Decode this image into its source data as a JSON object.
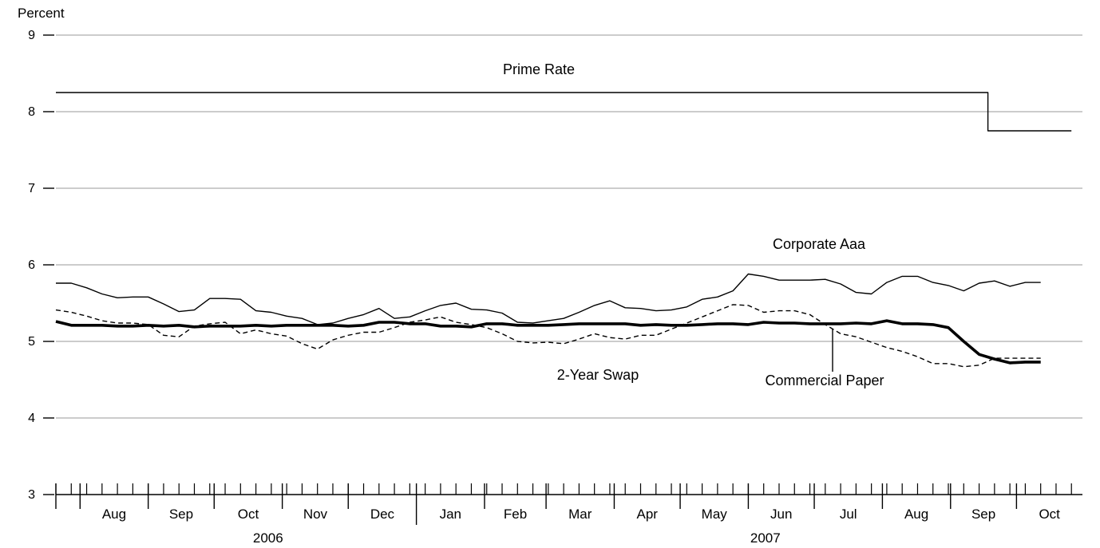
{
  "chart_data": {
    "type": "line",
    "ylabel": "Percent",
    "ylim": [
      3,
      9
    ],
    "yticks": [
      "3",
      "4",
      "5",
      "6",
      "7",
      "8",
      "9"
    ],
    "grid": "horizontal",
    "months": [
      "Aug",
      "Sep",
      "Oct",
      "Nov",
      "Dec",
      "Jan",
      "Feb",
      "Mar",
      "Apr",
      "May",
      "Jun",
      "Jul",
      "Aug",
      "Sep",
      "Oct"
    ],
    "years": [
      "2006",
      "2007"
    ],
    "x_start": "2006-07-21",
    "x_end": "2007-10-31",
    "series": [
      {
        "name": "Prime Rate",
        "style": "thin-solid",
        "x": [
          "2006-07-21",
          "2007-09-18",
          "2007-09-18",
          "2007-10-26"
        ],
        "values": [
          8.25,
          8.25,
          7.75,
          7.75
        ]
      },
      {
        "name": "Corporate Aaa",
        "style": "thin-solid",
        "x": [
          "2006-07-21",
          "2006-07-28",
          "2006-08-04",
          "2006-08-11",
          "2006-08-18",
          "2006-08-25",
          "2006-09-01",
          "2006-09-08",
          "2006-09-15",
          "2006-09-22",
          "2006-09-29",
          "2006-10-06",
          "2006-10-13",
          "2006-10-20",
          "2006-10-27",
          "2006-11-03",
          "2006-11-10",
          "2006-11-17",
          "2006-11-24",
          "2006-12-01",
          "2006-12-08",
          "2006-12-15",
          "2006-12-22",
          "2006-12-29",
          "2007-01-05",
          "2007-01-12",
          "2007-01-19",
          "2007-01-26",
          "2007-02-02",
          "2007-02-09",
          "2007-02-16",
          "2007-02-23",
          "2007-03-02",
          "2007-03-09",
          "2007-03-16",
          "2007-03-23",
          "2007-03-30",
          "2007-04-06",
          "2007-04-13",
          "2007-04-20",
          "2007-04-27",
          "2007-05-04",
          "2007-05-11",
          "2007-05-18",
          "2007-05-25",
          "2007-06-01",
          "2007-06-08",
          "2007-06-15",
          "2007-06-22",
          "2007-06-29",
          "2007-07-06",
          "2007-07-13",
          "2007-07-20",
          "2007-07-27",
          "2007-08-03",
          "2007-08-10",
          "2007-08-17",
          "2007-08-24",
          "2007-08-31",
          "2007-09-07",
          "2007-09-14",
          "2007-09-21",
          "2007-09-28",
          "2007-10-05",
          "2007-10-12"
        ],
        "values": [
          5.76,
          5.76,
          5.7,
          5.62,
          5.57,
          5.58,
          5.58,
          5.49,
          5.39,
          5.41,
          5.56,
          5.56,
          5.55,
          5.4,
          5.38,
          5.33,
          5.3,
          5.22,
          5.24,
          5.3,
          5.35,
          5.43,
          5.3,
          5.32,
          5.4,
          5.47,
          5.5,
          5.42,
          5.41,
          5.37,
          5.25,
          5.24,
          5.27,
          5.3,
          5.38,
          5.47,
          5.53,
          5.44,
          5.43,
          5.4,
          5.41,
          5.45,
          5.55,
          5.58,
          5.66,
          5.88,
          5.85,
          5.8,
          5.8,
          5.8,
          5.81,
          5.75,
          5.64,
          5.62,
          5.77,
          5.85,
          5.85,
          5.77,
          5.73,
          5.66,
          5.76,
          5.79,
          5.72,
          5.77,
          5.77
        ]
      },
      {
        "name": "2-Year Swap",
        "style": "dashed",
        "x": [
          "2006-07-21",
          "2006-07-28",
          "2006-08-04",
          "2006-08-11",
          "2006-08-18",
          "2006-08-25",
          "2006-09-01",
          "2006-09-08",
          "2006-09-15",
          "2006-09-22",
          "2006-09-29",
          "2006-10-06",
          "2006-10-13",
          "2006-10-20",
          "2006-10-27",
          "2006-11-03",
          "2006-11-10",
          "2006-11-17",
          "2006-11-24",
          "2006-12-01",
          "2006-12-08",
          "2006-12-15",
          "2006-12-22",
          "2006-12-29",
          "2007-01-05",
          "2007-01-12",
          "2007-01-19",
          "2007-01-26",
          "2007-02-02",
          "2007-02-09",
          "2007-02-16",
          "2007-02-23",
          "2007-03-02",
          "2007-03-09",
          "2007-03-16",
          "2007-03-23",
          "2007-03-30",
          "2007-04-06",
          "2007-04-13",
          "2007-04-20",
          "2007-04-27",
          "2007-05-04",
          "2007-05-11",
          "2007-05-18",
          "2007-05-25",
          "2007-06-01",
          "2007-06-08",
          "2007-06-15",
          "2007-06-22",
          "2007-06-29",
          "2007-07-06",
          "2007-07-13",
          "2007-07-20",
          "2007-07-27",
          "2007-08-03",
          "2007-08-10",
          "2007-08-17",
          "2007-08-24",
          "2007-08-31",
          "2007-09-07",
          "2007-09-14",
          "2007-09-21",
          "2007-09-28",
          "2007-10-05",
          "2007-10-12"
        ],
        "values": [
          5.41,
          5.38,
          5.33,
          5.27,
          5.24,
          5.24,
          5.22,
          5.08,
          5.06,
          5.2,
          5.23,
          5.25,
          5.1,
          5.15,
          5.1,
          5.07,
          4.97,
          4.9,
          5.02,
          5.08,
          5.12,
          5.12,
          5.18,
          5.25,
          5.28,
          5.32,
          5.25,
          5.22,
          5.18,
          5.1,
          5.0,
          4.98,
          4.99,
          4.97,
          5.03,
          5.1,
          5.05,
          5.03,
          5.08,
          5.08,
          5.16,
          5.24,
          5.32,
          5.4,
          5.48,
          5.47,
          5.38,
          5.4,
          5.4,
          5.35,
          5.22,
          5.1,
          5.06,
          4.99,
          4.92,
          4.87,
          4.8,
          4.71,
          4.71,
          4.67,
          4.69,
          4.78,
          4.78,
          4.78,
          4.78
        ]
      },
      {
        "name": "Commercial Paper",
        "style": "thick-solid",
        "x": [
          "2006-07-21",
          "2006-07-28",
          "2006-08-04",
          "2006-08-11",
          "2006-08-18",
          "2006-08-25",
          "2006-09-01",
          "2006-09-08",
          "2006-09-15",
          "2006-09-22",
          "2006-09-29",
          "2006-10-06",
          "2006-10-13",
          "2006-10-20",
          "2006-10-27",
          "2006-11-03",
          "2006-11-10",
          "2006-11-17",
          "2006-11-24",
          "2006-12-01",
          "2006-12-08",
          "2006-12-15",
          "2006-12-22",
          "2006-12-29",
          "2007-01-05",
          "2007-01-12",
          "2007-01-19",
          "2007-01-26",
          "2007-02-02",
          "2007-02-09",
          "2007-02-16",
          "2007-02-23",
          "2007-03-02",
          "2007-03-09",
          "2007-03-16",
          "2007-03-23",
          "2007-03-30",
          "2007-04-06",
          "2007-04-13",
          "2007-04-20",
          "2007-04-27",
          "2007-05-04",
          "2007-05-11",
          "2007-05-18",
          "2007-05-25",
          "2007-06-01",
          "2007-06-08",
          "2007-06-15",
          "2007-06-22",
          "2007-06-29",
          "2007-07-06",
          "2007-07-13",
          "2007-07-20",
          "2007-07-27",
          "2007-08-03",
          "2007-08-10",
          "2007-08-17",
          "2007-08-24",
          "2007-08-31",
          "2007-09-07",
          "2007-09-14",
          "2007-09-21",
          "2007-09-28",
          "2007-10-05",
          "2007-10-12"
        ],
        "values": [
          5.26,
          5.21,
          5.21,
          5.21,
          5.2,
          5.2,
          5.21,
          5.2,
          5.21,
          5.19,
          5.2,
          5.2,
          5.2,
          5.21,
          5.2,
          5.21,
          5.21,
          5.21,
          5.21,
          5.2,
          5.21,
          5.25,
          5.25,
          5.23,
          5.23,
          5.2,
          5.2,
          5.19,
          5.23,
          5.23,
          5.21,
          5.21,
          5.21,
          5.22,
          5.23,
          5.23,
          5.23,
          5.23,
          5.21,
          5.22,
          5.21,
          5.21,
          5.22,
          5.23,
          5.23,
          5.22,
          5.25,
          5.24,
          5.24,
          5.23,
          5.23,
          5.23,
          5.24,
          5.23,
          5.27,
          5.23,
          5.23,
          5.22,
          5.18,
          5.0,
          4.83,
          4.77,
          4.72,
          4.73,
          4.73
        ]
      }
    ],
    "annotations": [
      {
        "text": "Prime Rate",
        "series": "Prime Rate"
      },
      {
        "text": "Corporate Aaa",
        "series": "Corporate Aaa"
      },
      {
        "text": "2-Year Swap",
        "series": "2-Year Swap"
      },
      {
        "text": "Commercial Paper",
        "series": "Commercial Paper",
        "pointer": true
      }
    ]
  }
}
